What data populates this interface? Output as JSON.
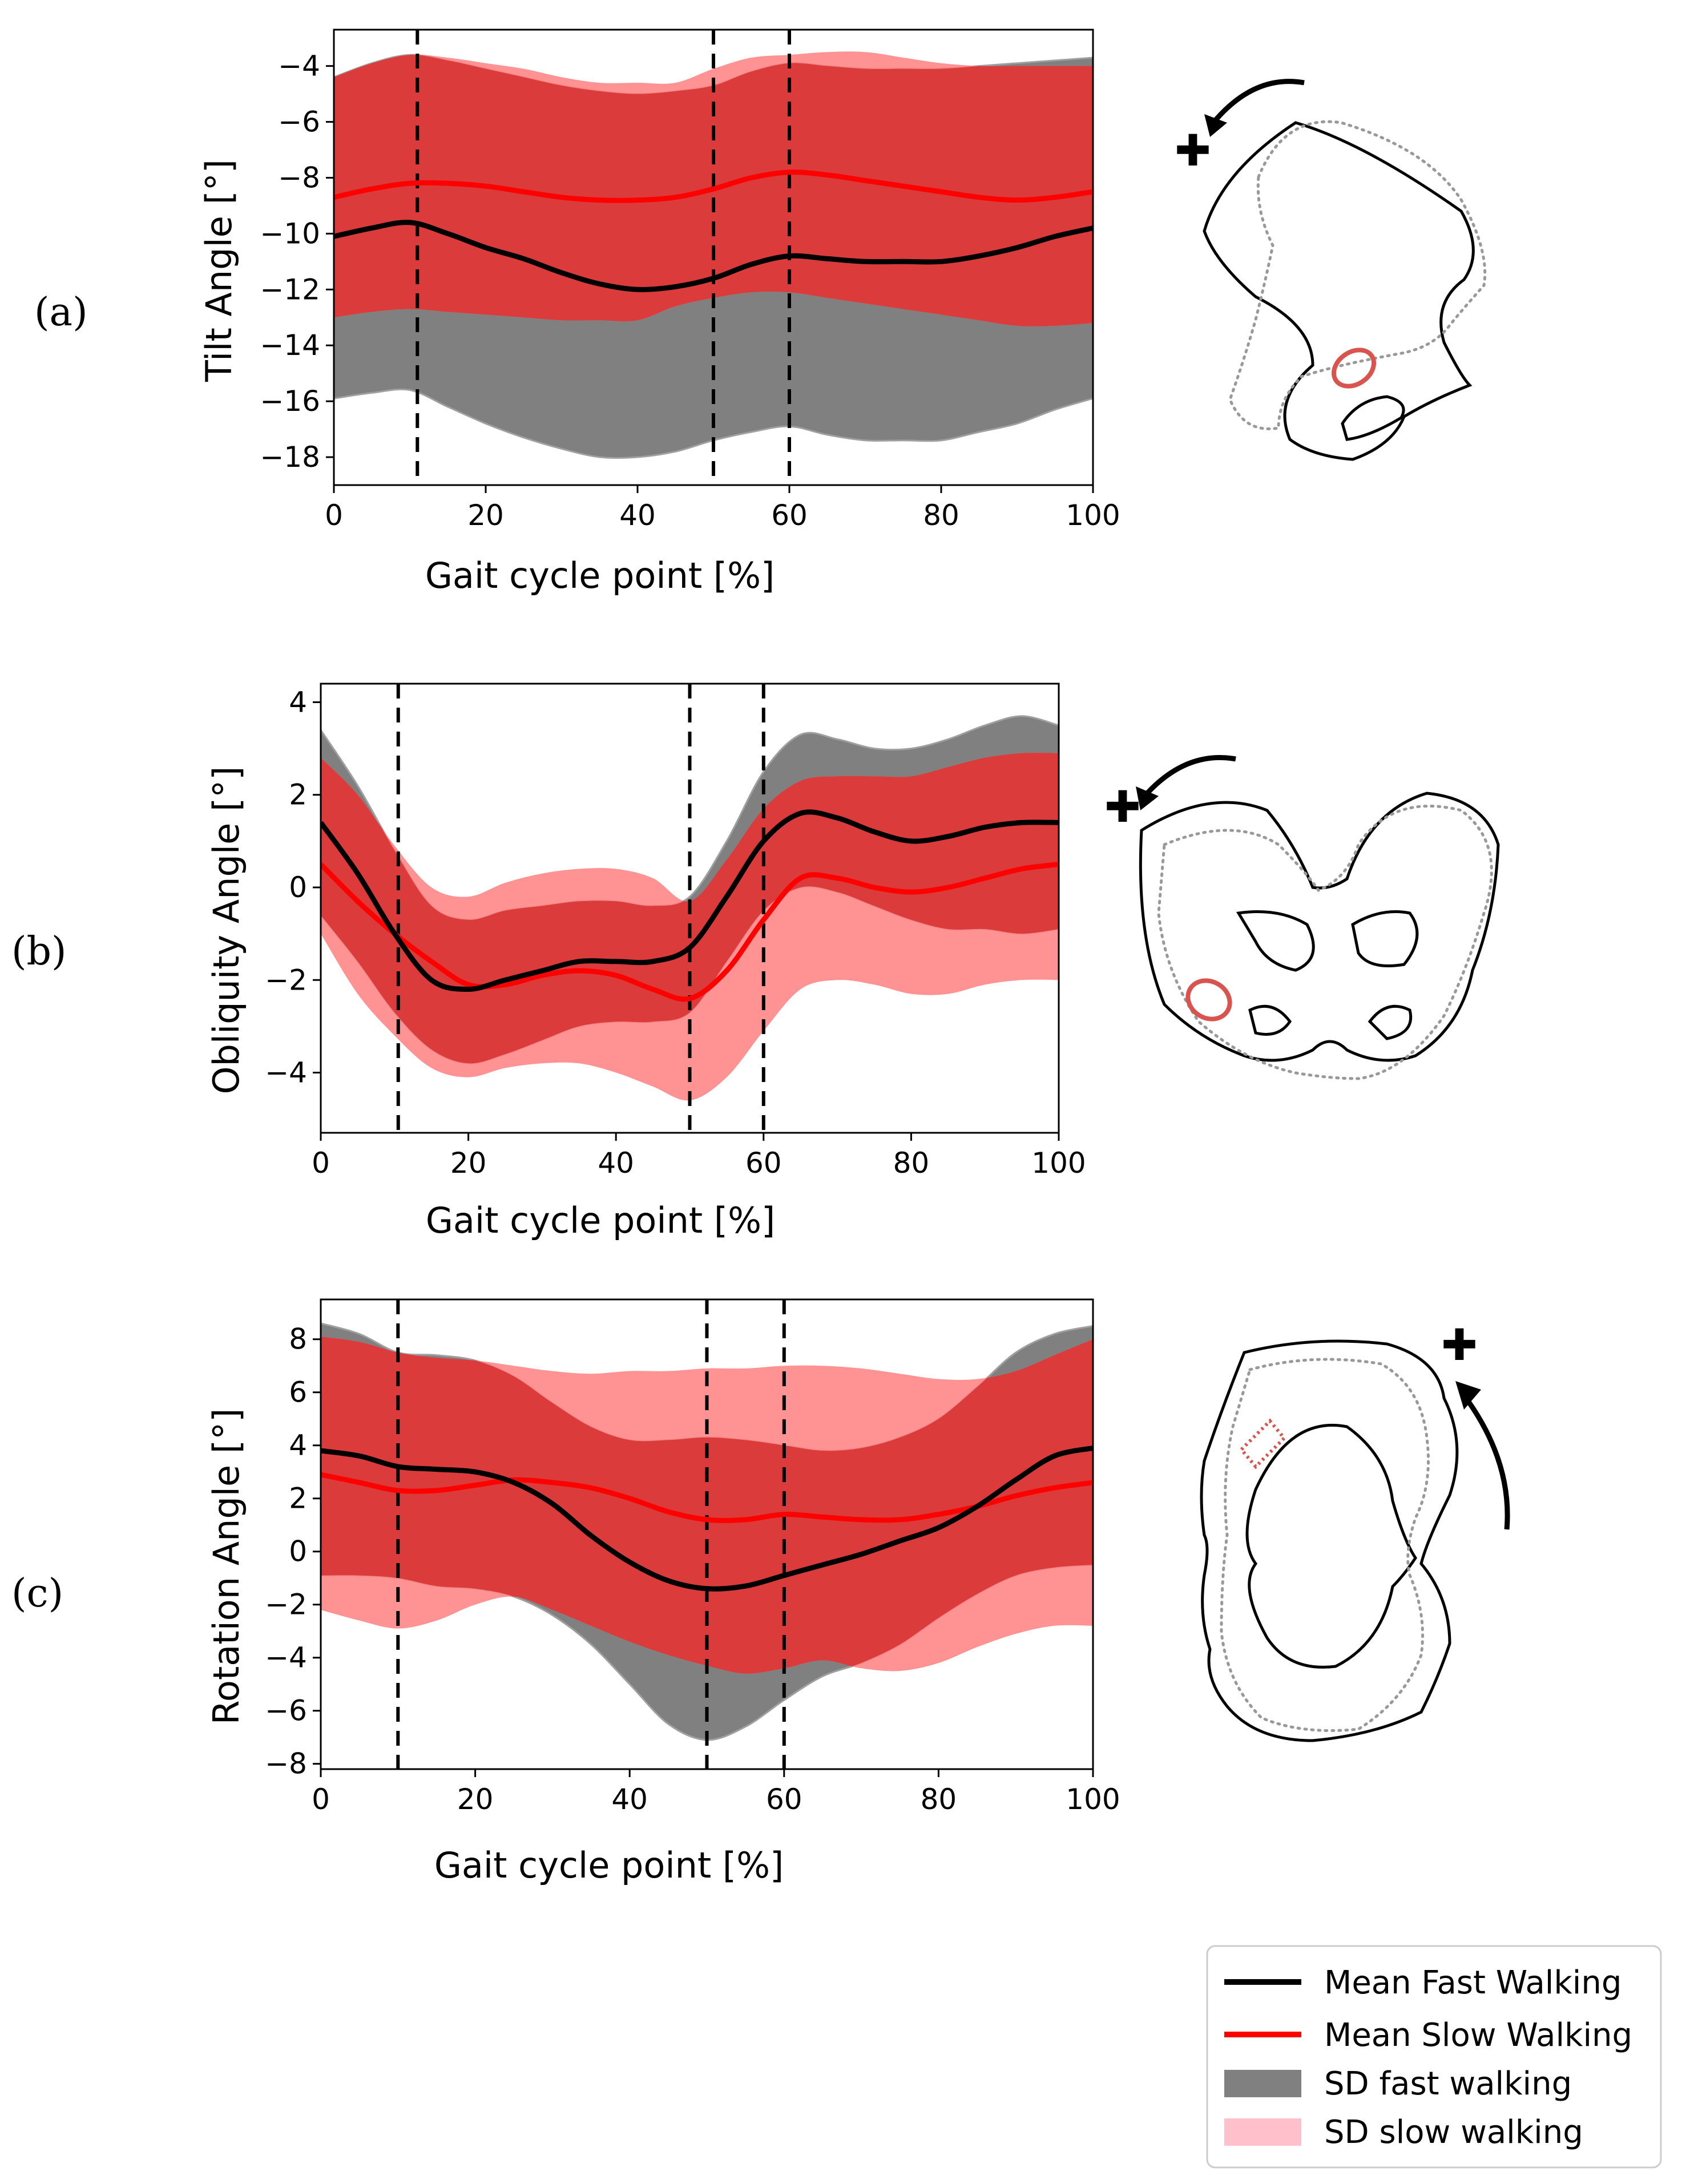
{
  "chart_data": [
    {
      "panel_label": "(a)",
      "type": "line",
      "xlabel": "Gait cycle point [%]",
      "ylabel": "Tilt Angle [°]",
      "xlim": [
        0,
        100
      ],
      "ylim": [
        -19,
        -2.7
      ],
      "xticks": [
        0,
        20,
        40,
        60,
        80,
        100
      ],
      "yticks": [
        -18,
        -16,
        -14,
        -12,
        -10,
        -8,
        -6,
        -4
      ],
      "vlines": [
        11,
        50,
        60
      ],
      "x": [
        0,
        5,
        10,
        15,
        20,
        25,
        30,
        35,
        40,
        45,
        50,
        55,
        60,
        65,
        70,
        75,
        80,
        85,
        90,
        95,
        100
      ],
      "series": [
        {
          "name": "Mean Fast Walking",
          "kind": "line",
          "color": "#000000",
          "values": [
            -10.1,
            -9.8,
            -9.6,
            -10.0,
            -10.5,
            -10.9,
            -11.4,
            -11.8,
            -12.0,
            -11.9,
            -11.6,
            -11.1,
            -10.8,
            -10.9,
            -11.0,
            -11.0,
            -11.0,
            -10.8,
            -10.5,
            -10.1,
            -9.8
          ]
        },
        {
          "name": "Mean Slow Walking",
          "kind": "line",
          "color": "#ff0000",
          "values": [
            -8.7,
            -8.4,
            -8.2,
            -8.2,
            -8.3,
            -8.5,
            -8.7,
            -8.8,
            -8.8,
            -8.7,
            -8.4,
            -8.0,
            -7.8,
            -7.9,
            -8.1,
            -8.3,
            -8.5,
            -8.7,
            -8.8,
            -8.7,
            -8.5
          ]
        },
        {
          "name": "SD fast walking",
          "kind": "band",
          "color": "#808080",
          "upper": [
            -4.4,
            -3.9,
            -3.6,
            -3.8,
            -4.1,
            -4.4,
            -4.7,
            -4.9,
            -5.0,
            -4.9,
            -4.7,
            -4.2,
            -3.9,
            -4.0,
            -4.1,
            -4.1,
            -4.1,
            -4.0,
            -3.9,
            -3.8,
            -3.7
          ],
          "lower": [
            -15.9,
            -15.7,
            -15.6,
            -16.2,
            -16.8,
            -17.3,
            -17.7,
            -18.0,
            -18.0,
            -17.8,
            -17.4,
            -17.1,
            -16.9,
            -17.2,
            -17.4,
            -17.4,
            -17.4,
            -17.1,
            -16.8,
            -16.3,
            -15.9
          ]
        },
        {
          "name": "SD slow walking",
          "kind": "band",
          "color": "#ff8080",
          "upper": [
            -4.4,
            -3.9,
            -3.6,
            -3.7,
            -3.9,
            -4.1,
            -4.4,
            -4.6,
            -4.6,
            -4.6,
            -4.1,
            -3.7,
            -3.6,
            -3.5,
            -3.5,
            -3.7,
            -3.9,
            -4.0,
            -4.0,
            -4.0,
            -4.0
          ],
          "lower": [
            -13.0,
            -12.8,
            -12.7,
            -12.8,
            -12.9,
            -13.0,
            -13.1,
            -13.1,
            -13.1,
            -12.6,
            -12.3,
            -12.1,
            -12.1,
            -12.3,
            -12.5,
            -12.7,
            -12.9,
            -13.1,
            -13.3,
            -13.3,
            -13.2
          ]
        }
      ]
    },
    {
      "panel_label": "(b)",
      "type": "line",
      "xlabel": "Gait cycle point [%]",
      "ylabel": "Obliquity Angle [°]",
      "xlim": [
        0,
        100
      ],
      "ylim": [
        -5.3,
        4.4
      ],
      "xticks": [
        0,
        20,
        40,
        60,
        80,
        100
      ],
      "yticks": [
        -4,
        -2,
        0,
        2,
        4
      ],
      "vlines": [
        10.5,
        50,
        60
      ],
      "x": [
        0,
        5,
        10,
        15,
        20,
        25,
        30,
        35,
        40,
        45,
        50,
        55,
        60,
        65,
        70,
        75,
        80,
        85,
        90,
        95,
        100
      ],
      "series": [
        {
          "name": "Mean Fast Walking",
          "kind": "line",
          "color": "#000000",
          "values": [
            1.4,
            0.3,
            -1.0,
            -2.0,
            -2.2,
            -2.0,
            -1.8,
            -1.6,
            -1.6,
            -1.6,
            -1.3,
            -0.2,
            1.0,
            1.6,
            1.5,
            1.2,
            1.0,
            1.1,
            1.3,
            1.4,
            1.4
          ]
        },
        {
          "name": "Mean Slow Walking",
          "kind": "line",
          "color": "#ff0000",
          "values": [
            0.5,
            -0.3,
            -1.0,
            -1.6,
            -2.1,
            -2.1,
            -1.9,
            -1.8,
            -1.9,
            -2.2,
            -2.4,
            -1.8,
            -0.7,
            0.2,
            0.2,
            0.0,
            -0.1,
            0.0,
            0.2,
            0.4,
            0.5
          ]
        },
        {
          "name": "SD fast walking",
          "kind": "band",
          "color": "#808080",
          "upper": [
            3.4,
            2.2,
            0.8,
            -0.4,
            -0.7,
            -0.5,
            -0.4,
            -0.3,
            -0.3,
            -0.4,
            -0.2,
            1.0,
            2.5,
            3.3,
            3.2,
            3.0,
            3.0,
            3.2,
            3.5,
            3.7,
            3.5
          ],
          "lower": [
            -0.6,
            -1.6,
            -2.7,
            -3.5,
            -3.8,
            -3.6,
            -3.3,
            -3.0,
            -2.9,
            -2.9,
            -2.7,
            -1.6,
            -0.5,
            0.0,
            -0.1,
            -0.4,
            -0.7,
            -0.9,
            -0.9,
            -1.0,
            -0.9
          ]
        },
        {
          "name": "SD slow walking",
          "kind": "band",
          "color": "#ff8080",
          "upper": [
            2.8,
            2.0,
            0.9,
            0.0,
            -0.2,
            0.1,
            0.3,
            0.4,
            0.4,
            0.2,
            -0.3,
            0.6,
            1.7,
            2.3,
            2.4,
            2.4,
            2.4,
            2.6,
            2.8,
            2.9,
            2.9
          ],
          "lower": [
            -1.0,
            -2.3,
            -3.2,
            -3.9,
            -4.1,
            -3.9,
            -3.8,
            -3.8,
            -4.0,
            -4.3,
            -4.6,
            -4.1,
            -3.1,
            -2.2,
            -2.0,
            -2.1,
            -2.3,
            -2.3,
            -2.1,
            -2.0,
            -2.0
          ]
        }
      ]
    },
    {
      "panel_label": "(c)",
      "type": "line",
      "xlabel": "Gait cycle point [%]",
      "ylabel": "Rotation Angle [°]",
      "xlim": [
        0,
        100
      ],
      "ylim": [
        -8.2,
        9.5
      ],
      "xticks": [
        0,
        20,
        40,
        60,
        80,
        100
      ],
      "yticks": [
        -8,
        -6,
        -4,
        -2,
        0,
        2,
        4,
        6,
        8
      ],
      "vlines": [
        10,
        50,
        60
      ],
      "x": [
        0,
        5,
        10,
        15,
        20,
        25,
        30,
        35,
        40,
        45,
        50,
        55,
        60,
        65,
        70,
        75,
        80,
        85,
        90,
        95,
        100
      ],
      "series": [
        {
          "name": "Mean Fast Walking",
          "kind": "line",
          "color": "#000000",
          "values": [
            3.8,
            3.6,
            3.2,
            3.1,
            3.0,
            2.6,
            1.8,
            0.6,
            -0.4,
            -1.1,
            -1.4,
            -1.3,
            -0.9,
            -0.5,
            -0.1,
            0.4,
            0.9,
            1.7,
            2.7,
            3.6,
            3.9
          ]
        },
        {
          "name": "Mean Slow Walking",
          "kind": "line",
          "color": "#ff0000",
          "values": [
            2.9,
            2.6,
            2.3,
            2.3,
            2.5,
            2.7,
            2.6,
            2.4,
            2.0,
            1.5,
            1.2,
            1.2,
            1.4,
            1.3,
            1.2,
            1.2,
            1.4,
            1.7,
            2.1,
            2.4,
            2.6
          ]
        },
        {
          "name": "SD fast walking",
          "kind": "band",
          "color": "#808080",
          "upper": [
            8.6,
            8.2,
            7.5,
            7.4,
            7.2,
            6.6,
            5.6,
            4.7,
            4.2,
            4.2,
            4.3,
            4.2,
            4.0,
            3.8,
            3.9,
            4.3,
            5.0,
            6.2,
            7.5,
            8.2,
            8.5
          ],
          "lower": [
            -0.9,
            -0.9,
            -1.0,
            -1.3,
            -1.4,
            -1.7,
            -2.4,
            -3.5,
            -5.0,
            -6.5,
            -7.1,
            -6.6,
            -5.6,
            -4.7,
            -4.2,
            -3.5,
            -2.5,
            -1.6,
            -0.9,
            -0.6,
            -0.5
          ]
        },
        {
          "name": "SD slow walking",
          "kind": "band",
          "color": "#ff8080",
          "upper": [
            8.1,
            7.9,
            7.5,
            7.3,
            7.2,
            7.0,
            6.8,
            6.7,
            6.8,
            6.8,
            6.9,
            6.9,
            7.0,
            7.0,
            6.9,
            6.7,
            6.5,
            6.5,
            6.8,
            7.4,
            8.0
          ],
          "lower": [
            -2.2,
            -2.6,
            -2.9,
            -2.6,
            -2.0,
            -1.7,
            -2.2,
            -2.8,
            -3.4,
            -3.9,
            -4.3,
            -4.6,
            -4.4,
            -4.1,
            -4.4,
            -4.5,
            -4.2,
            -3.6,
            -3.1,
            -2.8,
            -2.8
          ]
        }
      ]
    }
  ],
  "legend": {
    "placement": "bottom-right",
    "entries": [
      {
        "label": "Mean Fast Walking",
        "color": "#000000",
        "kind": "line"
      },
      {
        "label": "Mean Slow Walking",
        "color": "#ff0000",
        "kind": "line"
      },
      {
        "label": "SD fast walking",
        "color": "#808080",
        "kind": "patch"
      },
      {
        "label": "SD slow walking",
        "color": "#ffc0cb",
        "kind": "patch"
      }
    ]
  },
  "illustrations": [
    {
      "panel": "(a)",
      "view": "pelvis-lateral-view",
      "direction_symbol": "✚"
    },
    {
      "panel": "(b)",
      "view": "pelvis-frontal-view",
      "direction_symbol": "✚"
    },
    {
      "panel": "(c)",
      "view": "pelvis-top-view",
      "direction_symbol": "✚"
    }
  ]
}
